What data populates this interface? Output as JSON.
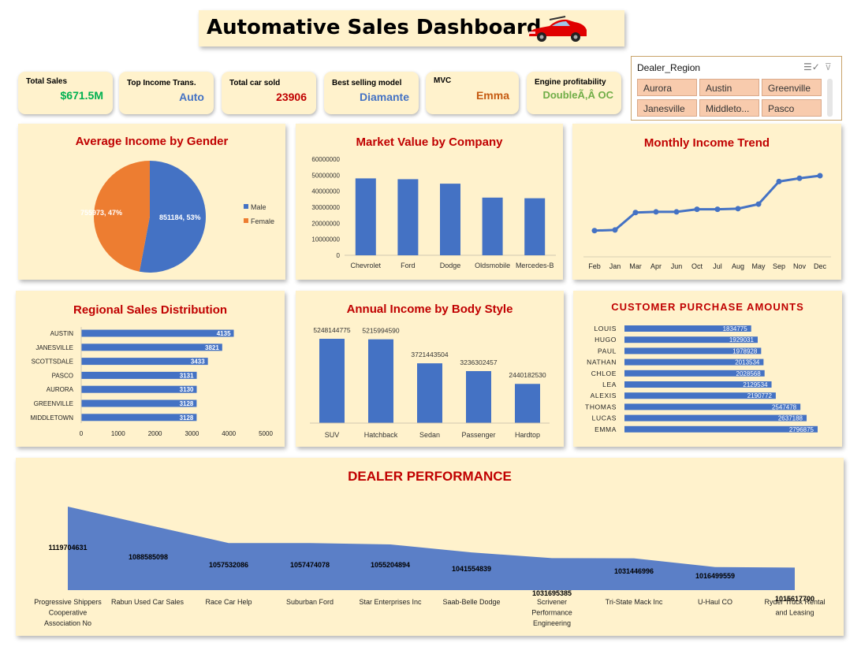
{
  "header": {
    "title": "Automative Sales Dashboard"
  },
  "kpis": [
    {
      "label": "Total Sales",
      "value": "$671.5M",
      "color": "#00b050"
    },
    {
      "label": "Top Income Trans.",
      "value": "Auto",
      "color": "#4472c4"
    },
    {
      "label": "Total car sold",
      "value": "23906",
      "color": "#c00000"
    },
    {
      "label": "Best selling model",
      "value": "Diamante",
      "color": "#4472c4"
    },
    {
      "label": "MVC",
      "value": "Emma",
      "color": "#c55a11"
    },
    {
      "label": "Engine profitability",
      "value": "DoubleÃ‚Â OC",
      "color": "#70ad47"
    }
  ],
  "slicer": {
    "title": "Dealer_Region",
    "items": [
      "Aurora",
      "Austin",
      "Greenville",
      "Janesville",
      "Middleto...",
      "Pasco"
    ],
    "icons": [
      "multi-select-icon",
      "clear-filter-icon"
    ]
  },
  "chart_data": [
    {
      "type": "pie",
      "title": "Average Income by Gender",
      "series": [
        {
          "name": "Male",
          "value": 851184,
          "percent": 53,
          "label": "851184, 53%",
          "color": "#4472c4"
        },
        {
          "name": "Female",
          "value": 755973,
          "percent": 47,
          "label": "755973, 47%",
          "color": "#ed7d31"
        }
      ],
      "legend": "right"
    },
    {
      "type": "bar",
      "title": "Market Value by Company",
      "categories": [
        "Chevrolet",
        "Ford",
        "Dodge",
        "Oldsmobile",
        "Mercedes-B"
      ],
      "values": [
        48000000,
        47500000,
        44700000,
        36000000,
        35600000
      ],
      "ylim": [
        0,
        60000000
      ],
      "yticks": [
        "0",
        "10000000",
        "20000000",
        "30000000",
        "40000000",
        "50000000",
        "60000000"
      ],
      "color": "#4472c4"
    },
    {
      "type": "line",
      "title": "Monthly Income Trend",
      "categories": [
        "Feb",
        "Jan",
        "Mar",
        "Apr",
        "Jun",
        "Oct",
        "Jul",
        "Aug",
        "May",
        "Sep",
        "Nov",
        "Dec"
      ],
      "values": [
        15,
        16,
        43,
        44,
        44,
        48,
        48,
        49,
        56,
        91,
        96,
        100
      ],
      "color": "#4472c4"
    },
    {
      "type": "bar",
      "orientation": "horizontal",
      "title": "Regional Sales Distribution",
      "categories": [
        "AUSTIN",
        "JANESVILLE",
        "SCOTTSDALE",
        "PASCO",
        "AURORA",
        "GREENVILLE",
        "MIDDLETOWN"
      ],
      "values": [
        4135,
        3821,
        3433,
        3131,
        3130,
        3128,
        3128
      ],
      "xlim": [
        0,
        5000
      ],
      "xticks": [
        "0",
        "1000",
        "2000",
        "3000",
        "4000",
        "5000"
      ],
      "color": "#4472c4"
    },
    {
      "type": "bar",
      "title": "Annual Income by Body Style",
      "categories": [
        "SUV",
        "Hatchback",
        "Sedan",
        "Passenger",
        "Hardtop"
      ],
      "values": [
        5248144775,
        5215994590,
        3721443504,
        3236302457,
        2440182530
      ],
      "data_labels": [
        "5248144775",
        "5215994590",
        "3721443504",
        "3236302457",
        "2440182530"
      ],
      "color": "#4472c4"
    },
    {
      "type": "bar",
      "orientation": "horizontal",
      "title": "CUSTOMER PURCHASE AMOUNTS",
      "categories": [
        "LOUIS",
        "HUGO",
        "PAUL",
        "NATHAN",
        "CHLOE",
        "LEA",
        "ALEXIS",
        "THOMAS",
        "LUCAS",
        "EMMA"
      ],
      "values": [
        1834775,
        1929031,
        1978928,
        2013534,
        2028568,
        2129534,
        2190772,
        2547478,
        2637188,
        2796875
      ],
      "data_labels": [
        "1834775",
        "1929031",
        "1978928",
        "2013534",
        "2028568",
        "2129534",
        "2190772",
        "2547478",
        "2637188",
        "2796875"
      ],
      "color": "#4472c4"
    },
    {
      "type": "area",
      "title": "DEALER PERFORMANCE",
      "categories": [
        "Progressive Shippers Cooperative Association No",
        "Rabun Used Car Sales",
        "Race Car Help",
        "Suburban Ford",
        "Star Enterprises Inc",
        "Saab-Belle Dodge",
        "Scrivener Performance Engineering",
        "Tri-State Mack Inc",
        "U-Haul CO",
        "Ryder Truck Rental and Leasing"
      ],
      "category_lines": [
        [
          "Progressive Shippers",
          "Cooperative",
          "Association No"
        ],
        [
          "Rabun Used Car Sales"
        ],
        [
          "Race Car Help"
        ],
        [
          "Suburban Ford"
        ],
        [
          "Star Enterprises Inc"
        ],
        [
          "Saab-Belle Dodge"
        ],
        [
          "Scrivener",
          "Performance",
          "Engineering"
        ],
        [
          "Tri-State Mack Inc"
        ],
        [
          "U-Haul CO"
        ],
        [
          "Ryder Truck Rental",
          "and Leasing"
        ]
      ],
      "values": [
        1119704631,
        1088585098,
        1057532086,
        1057474078,
        1055204894,
        1041554839,
        1031695385,
        1031446996,
        1016499559,
        1015617700
      ],
      "data_labels": [
        "1119704631",
        "1088585098",
        "1057532086",
        "1057474078",
        "1055204894",
        "1041554839",
        "1031695385",
        "1031446996",
        "1016499559",
        "1015617700"
      ],
      "color": "#5b7fc7"
    }
  ]
}
